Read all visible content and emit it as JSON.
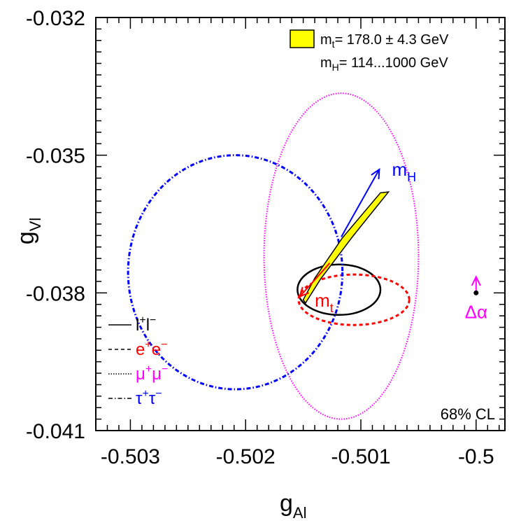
{
  "chart_data": {
    "type": "scatter",
    "xlabel": "g",
    "xlabel_sub": "Al",
    "ylabel": "g",
    "ylabel_sub": "Vl",
    "xlim": [
      -0.5033,
      -0.49975
    ],
    "ylim": [
      -0.041,
      -0.032
    ],
    "x_ticks": [
      {
        "value": -0.503,
        "label": "-0.503"
      },
      {
        "value": -0.502,
        "label": "-0.502"
      },
      {
        "value": -0.501,
        "label": "-0.501"
      },
      {
        "value": -0.5,
        "label": "-0.5"
      }
    ],
    "y_ticks": [
      {
        "value": -0.032,
        "label": "-0.032"
      },
      {
        "value": -0.035,
        "label": "-0.035"
      },
      {
        "value": -0.038,
        "label": "-0.038"
      },
      {
        "value": -0.041,
        "label": "-0.041"
      }
    ],
    "legend_top": {
      "placement": "top-right",
      "band_color": "#ffff00",
      "line1": {
        "main": "m",
        "sub": "t",
        "rest": "= 178.0 ± 4.3 GeV"
      },
      "line2": {
        "main": "m",
        "sub": "H",
        "rest": "= 114...1000 GeV"
      }
    },
    "series": [
      {
        "name": "l+l−",
        "label_main": "l",
        "label_sup1": "+",
        "label_main2": "l",
        "label_sup2": "−",
        "color": "#000000",
        "label_color": "#000000",
        "style": "solid",
        "center": [
          -0.50119,
          -0.03793
        ],
        "semi_axes": [
          0.00036,
          0.00055
        ]
      },
      {
        "name": "e+e−",
        "label_main": "e",
        "label_sup1": "+",
        "label_main2": "e",
        "label_sup2": "−",
        "color": "#ff0000",
        "label_color": "#ff0000",
        "style": "dashed",
        "center": [
          -0.50106,
          -0.03815
        ],
        "semi_axes": [
          0.00048,
          0.00055
        ]
      },
      {
        "name": "μ+μ−",
        "label_main": "μ",
        "label_sup1": "+",
        "label_main2": "μ",
        "label_sup2": "−",
        "color": "#ff00ff",
        "label_color": "#ff00ff",
        "style": "dotted",
        "center": [
          -0.50117,
          -0.0372
        ],
        "semi_axes": [
          0.00067,
          0.00355
        ]
      },
      {
        "name": "τ+τ−",
        "label_main": "τ",
        "label_sup1": "+",
        "label_main2": "τ",
        "label_sup2": "−",
        "color": "#0000ff",
        "label_color": "#0000ff",
        "style": "dashdot",
        "center": [
          -0.50209,
          -0.03755
        ],
        "semi_axes": [
          0.00093,
          0.00255
        ]
      }
    ],
    "sm_band": {
      "color": "#ffff00",
      "outline": "#000000",
      "polygon": [
        [
          -0.50148,
          -0.03822
        ],
        [
          -0.50135,
          -0.0377
        ],
        [
          -0.50108,
          -0.0368
        ],
        [
          -0.50076,
          -0.0358
        ],
        [
          -0.50083,
          -0.03582
        ],
        [
          -0.50116,
          -0.0368
        ],
        [
          -0.5014,
          -0.03768
        ],
        [
          -0.5015,
          -0.03815
        ]
      ]
    },
    "arrows": [
      {
        "label_main": "m",
        "label_sub": "H",
        "color": "#0000ff",
        "from": [
          -0.50117,
          -0.03678
        ],
        "to": [
          -0.50084,
          -0.03531
        ],
        "label_at": [
          -0.50073,
          -0.03545
        ]
      },
      {
        "label_main": "m",
        "label_sub": "t",
        "color": "#ff0000",
        "from": [
          -0.50127,
          -0.03735
        ],
        "to": [
          -0.50153,
          -0.03808
        ],
        "label_at": [
          -0.5014,
          -0.0383
        ]
      }
    ],
    "delta_alpha": {
      "label": "Δα",
      "color": "#ff00ff",
      "point": [
        -0.5,
        -0.038
      ],
      "arrow_to": [
        -0.5,
        -0.03765
      ],
      "label_at": [
        -0.5,
        -0.03855
      ]
    },
    "cl_label": "68% CL"
  }
}
